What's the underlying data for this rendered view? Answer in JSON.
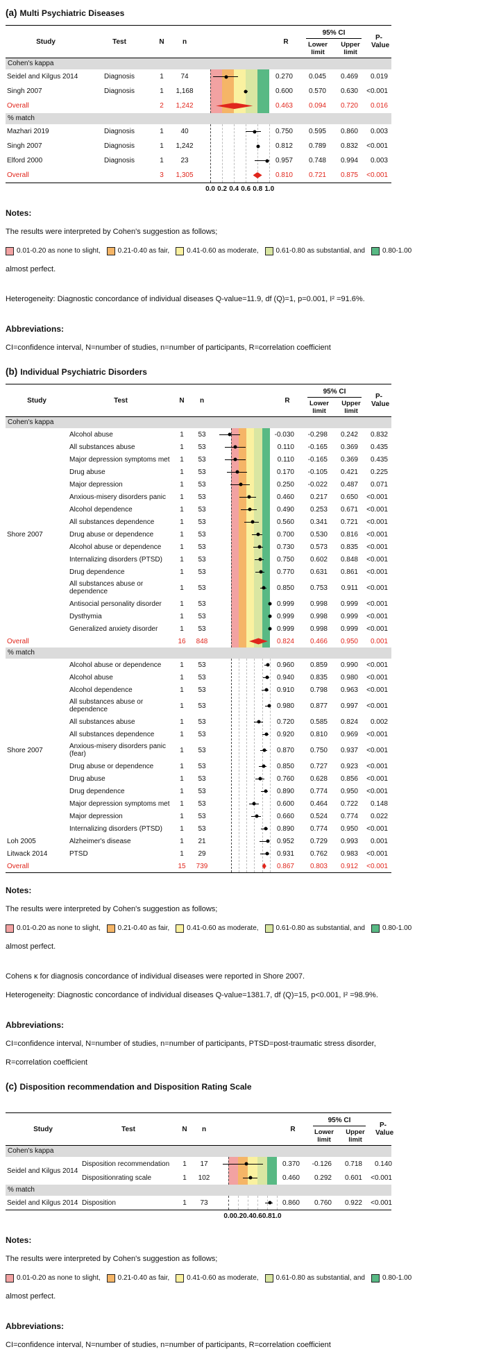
{
  "colors": {
    "band_colors": [
      "#F2A2A2",
      "#F5B567",
      "#FAF1A0",
      "#D9E6A2",
      "#58B984"
    ],
    "overall_red": "#E0261C",
    "section_bg": "#DBDBDB"
  },
  "band_ranges": [
    [
      0,
      0.2
    ],
    [
      0.2,
      0.4
    ],
    [
      0.4,
      0.6
    ],
    [
      0.6,
      0.8
    ],
    [
      0.8,
      1.0
    ]
  ],
  "labels": {
    "notes_heading": "Notes:",
    "abbreviations_heading": "Abbreviations:"
  },
  "legend": {
    "intro": "The results were interpreted by Cohen's suggestion as follows;",
    "items": [
      {
        "color_index": 0,
        "label": "0.01-0.20 as none to slight,"
      },
      {
        "color_index": 1,
        "label": "0.21-0.40 as fair,"
      },
      {
        "color_index": 2,
        "label": "0.41-0.60 as moderate,"
      },
      {
        "color_index": 3,
        "label": "0.61-0.80 as substantial, and"
      },
      {
        "color_index": 4,
        "label": "0.80-1.00"
      }
    ],
    "tail": "almost perfect."
  },
  "table_headers": {
    "study": "Study",
    "test": "Test",
    "n_studies": "N",
    "n_participants": "n",
    "r": "R",
    "ci": "95% CI",
    "lower": "Lower limit",
    "upper": "Upper limit",
    "p": "P-Value"
  },
  "chart_data": [
    {
      "type": "forest",
      "id": "a",
      "label": "(a)",
      "title": "Multi Psychiatric Diseases",
      "domain": [
        -0.2,
        1.02
      ],
      "axis": {
        "ticks": [
          0,
          0.2,
          0.4,
          0.6,
          0.8,
          1.0
        ],
        "labels": [
          "0.0",
          "0.2",
          "0.4",
          "0.6",
          "0.8",
          "1.0"
        ]
      },
      "sections": [
        {
          "name": "Cohen's kappa",
          "colored": true,
          "rows": [
            {
              "study": "Seidel and Kilgus 2014",
              "test": "Diagnosis",
              "N": "1",
              "n": "74",
              "R": "0.270",
              "lower": "0.045",
              "upper": "0.469",
              "p": "0.019",
              "rv": 0.27,
              "lo": 0.045,
              "hi": 0.469
            },
            {
              "study": "Singh 2007",
              "test": "Diagnosis",
              "N": "1",
              "n": "1,168",
              "R": "0.600",
              "lower": "0.570",
              "upper": "0.630",
              "p": "<0.001",
              "rv": 0.6,
              "lo": 0.57,
              "hi": 0.63
            },
            {
              "study": "Overall",
              "test": "",
              "N": "2",
              "n": "1,242",
              "R": "0.463",
              "lower": "0.094",
              "upper": "0.720",
              "p": "0.016",
              "rv": 0.463,
              "lo": 0.094,
              "hi": 0.72,
              "overall": true
            }
          ]
        },
        {
          "name": "% match",
          "colored": false,
          "rows": [
            {
              "study": "Mazhari 2019",
              "test": "Diagnosis",
              "N": "1",
              "n": "40",
              "R": "0.750",
              "lower": "0.595",
              "upper": "0.860",
              "p": "0.003",
              "rv": 0.75,
              "lo": 0.595,
              "hi": 0.86
            },
            {
              "study": "Singh 2007",
              "test": "Diagnosis",
              "N": "1",
              "n": "1,242",
              "R": "0.812",
              "lower": "0.789",
              "upper": "0.832",
              "p": "<0.001",
              "rv": 0.812,
              "lo": 0.789,
              "hi": 0.832
            },
            {
              "study": "Elford 2000",
              "test": "Diagnosis",
              "N": "1",
              "n": "23",
              "R": "0.957",
              "lower": "0.748",
              "upper": "0.994",
              "p": "0.003",
              "rv": 0.957,
              "lo": 0.748,
              "hi": 0.994
            },
            {
              "study": "Overall",
              "test": "",
              "N": "3",
              "n": "1,305",
              "R": "0.810",
              "lower": "0.721",
              "upper": "0.875",
              "p": "<0.001",
              "rv": 0.81,
              "lo": 0.721,
              "hi": 0.875,
              "overall": true
            }
          ]
        }
      ],
      "notes": {
        "extra": [],
        "heterogeneity": "Heterogeneity: Diagnostic concordance of individual diseases Q-value=11.9, df (Q)=1, p=0.001, I² =91.6%.",
        "abbr_lines": [
          "CI=confidence interval, N=number of studies, n=number of participants, R=correlation coefficient"
        ]
      }
    },
    {
      "type": "forest",
      "id": "b",
      "label": "(b)",
      "title": "Individual Psychiatric Disorders",
      "domain": [
        -0.45,
        1.06
      ],
      "axis": null,
      "sections": [
        {
          "name": "Cohen's kappa",
          "colored": true,
          "rows": [
            {
              "study": "",
              "test": "Alcohol abuse",
              "N": "1",
              "n": "53",
              "R": "-0.030",
              "lower": "-0.298",
              "upper": "0.242",
              "p": "0.832",
              "rv": -0.03,
              "lo": -0.298,
              "hi": 0.242
            },
            {
              "study": "",
              "test": "All substances abuse",
              "N": "1",
              "n": "53",
              "R": "0.110",
              "lower": "-0.165",
              "upper": "0.369",
              "p": "0.435",
              "rv": 0.11,
              "lo": -0.165,
              "hi": 0.369
            },
            {
              "study": "",
              "test": "Major depression symptoms met",
              "N": "1",
              "n": "53",
              "R": "0.110",
              "lower": "-0.165",
              "upper": "0.369",
              "p": "0.435",
              "rv": 0.11,
              "lo": -0.165,
              "hi": 0.369
            },
            {
              "study": "",
              "test": "Drug abuse",
              "N": "1",
              "n": "53",
              "R": "0.170",
              "lower": "-0.105",
              "upper": "0.421",
              "p": "0.225",
              "rv": 0.17,
              "lo": -0.105,
              "hi": 0.421
            },
            {
              "study": "",
              "test": "Major depression",
              "N": "1",
              "n": "53",
              "R": "0.250",
              "lower": "-0.022",
              "upper": "0.487",
              "p": "0.071",
              "rv": 0.25,
              "lo": -0.022,
              "hi": 0.487
            },
            {
              "study": "",
              "test": "Anxious-misery disorders panic",
              "N": "1",
              "n": "53",
              "R": "0.460",
              "lower": "0.217",
              "upper": "0.650",
              "p": "<0.001",
              "rv": 0.46,
              "lo": 0.217,
              "hi": 0.65
            },
            {
              "study": "",
              "test": "Alcohol dependence",
              "N": "1",
              "n": "53",
              "R": "0.490",
              "lower": "0.253",
              "upper": "0.671",
              "p": "<0.001",
              "rv": 0.49,
              "lo": 0.253,
              "hi": 0.671
            },
            {
              "study": "",
              "test": "All substances dependence",
              "N": "1",
              "n": "53",
              "R": "0.560",
              "lower": "0.341",
              "upper": "0.721",
              "p": "<0.001",
              "rv": 0.56,
              "lo": 0.341,
              "hi": 0.721
            },
            {
              "study": "Shore 2007",
              "test": "Drug abuse or dependence",
              "N": "1",
              "n": "53",
              "R": "0.700",
              "lower": "0.530",
              "upper": "0.816",
              "p": "<0.001",
              "rv": 0.7,
              "lo": 0.53,
              "hi": 0.816
            },
            {
              "study": "",
              "test": "Alcohol abuse or dependence",
              "N": "1",
              "n": "53",
              "R": "0.730",
              "lower": "0.573",
              "upper": "0.835",
              "p": "<0.001",
              "rv": 0.73,
              "lo": 0.573,
              "hi": 0.835
            },
            {
              "study": "",
              "test": "Internalizing disorders (PTSD)",
              "N": "1",
              "n": "53",
              "R": "0.750",
              "lower": "0.602",
              "upper": "0.848",
              "p": "<0.001",
              "rv": 0.75,
              "lo": 0.602,
              "hi": 0.848
            },
            {
              "study": "",
              "test": "Drug dependence",
              "N": "1",
              "n": "53",
              "R": "0.770",
              "lower": "0.631",
              "upper": "0.861",
              "p": "<0.001",
              "rv": 0.77,
              "lo": 0.631,
              "hi": 0.861
            },
            {
              "study": "",
              "test": "All substances abuse or dependence",
              "N": "1",
              "n": "53",
              "R": "0.850",
              "lower": "0.753",
              "upper": "0.911",
              "p": "<0.001",
              "rv": 0.85,
              "lo": 0.753,
              "hi": 0.911,
              "wrap": true
            },
            {
              "study": "",
              "test": "Antisocial personality disorder",
              "N": "1",
              "n": "53",
              "R": "0.999",
              "lower": "0.998",
              "upper": "0.999",
              "p": "<0.001",
              "rv": 0.999,
              "lo": 0.998,
              "hi": 0.999
            },
            {
              "study": "",
              "test": "Dysthymia",
              "N": "1",
              "n": "53",
              "R": "0.999",
              "lower": "0.998",
              "upper": "0.999",
              "p": "<0.001",
              "rv": 0.999,
              "lo": 0.998,
              "hi": 0.999
            },
            {
              "study": "",
              "test": "Generalized anxiety disorder",
              "N": "1",
              "n": "53",
              "R": "0.999",
              "lower": "0.998",
              "upper": "0.999",
              "p": "<0.001",
              "rv": 0.999,
              "lo": 0.998,
              "hi": 0.999
            },
            {
              "study": "Overall",
              "test": "",
              "N": "16",
              "n": "848",
              "R": "0.824",
              "lower": "0.466",
              "upper": "0.950",
              "p": "0.001",
              "rv": 0.824,
              "lo": 0.466,
              "hi": 0.95,
              "overall": true
            }
          ]
        },
        {
          "name": "% match",
          "colored": false,
          "rows": [
            {
              "study": "",
              "test": "Alcohol abuse or dependence",
              "N": "1",
              "n": "53",
              "R": "0.960",
              "lower": "0.859",
              "upper": "0.990",
              "p": "<0.001",
              "rv": 0.96,
              "lo": 0.859,
              "hi": 0.99
            },
            {
              "study": "",
              "test": "Alcohol abuse",
              "N": "1",
              "n": "53",
              "R": "0.940",
              "lower": "0.835",
              "upper": "0.980",
              "p": "<0.001",
              "rv": 0.94,
              "lo": 0.835,
              "hi": 0.98
            },
            {
              "study": "",
              "test": "Alcohol dependence",
              "N": "1",
              "n": "53",
              "R": "0.910",
              "lower": "0.798",
              "upper": "0.963",
              "p": "<0.001",
              "rv": 0.91,
              "lo": 0.798,
              "hi": 0.963
            },
            {
              "study": "",
              "test": "All substances abuse or dependence",
              "N": "1",
              "n": "53",
              "R": "0.980",
              "lower": "0.877",
              "upper": "0.997",
              "p": "<0.001",
              "rv": 0.98,
              "lo": 0.877,
              "hi": 0.997,
              "wrap": true
            },
            {
              "study": "",
              "test": "All substances abuse",
              "N": "1",
              "n": "53",
              "R": "0.720",
              "lower": "0.585",
              "upper": "0.824",
              "p": "0.002",
              "rv": 0.72,
              "lo": 0.585,
              "hi": 0.824
            },
            {
              "study": "",
              "test": "All substances dependence",
              "N": "1",
              "n": "53",
              "R": "0.920",
              "lower": "0.810",
              "upper": "0.969",
              "p": "<0.001",
              "rv": 0.92,
              "lo": 0.81,
              "hi": 0.969
            },
            {
              "study": "Shore 2007",
              "test": "Anxious-misery disorders panic (fear)",
              "N": "1",
              "n": "53",
              "R": "0.870",
              "lower": "0.750",
              "upper": "0.937",
              "p": "<0.001",
              "rv": 0.87,
              "lo": 0.75,
              "hi": 0.937,
              "wrap": true
            },
            {
              "study": "",
              "test": "Drug abuse or dependence",
              "N": "1",
              "n": "53",
              "R": "0.850",
              "lower": "0.727",
              "upper": "0.923",
              "p": "<0.001",
              "rv": 0.85,
              "lo": 0.727,
              "hi": 0.923
            },
            {
              "study": "",
              "test": "Drug abuse",
              "N": "1",
              "n": "53",
              "R": "0.760",
              "lower": "0.628",
              "upper": "0.856",
              "p": "<0.001",
              "rv": 0.76,
              "lo": 0.628,
              "hi": 0.856
            },
            {
              "study": "",
              "test": "Drug dependence",
              "N": "1",
              "n": "53",
              "R": "0.890",
              "lower": "0.774",
              "upper": "0.950",
              "p": "<0.001",
              "rv": 0.89,
              "lo": 0.774,
              "hi": 0.95
            },
            {
              "study": "",
              "test": "Major depression symptoms met",
              "N": "1",
              "n": "53",
              "R": "0.600",
              "lower": "0.464",
              "upper": "0.722",
              "p": "0.148",
              "rv": 0.6,
              "lo": 0.464,
              "hi": 0.722
            },
            {
              "study": "",
              "test": "Major depression",
              "N": "1",
              "n": "53",
              "R": "0.660",
              "lower": "0.524",
              "upper": "0.774",
              "p": "0.022",
              "rv": 0.66,
              "lo": 0.524,
              "hi": 0.774
            },
            {
              "study": "",
              "test": "Internalizing disorders (PTSD)",
              "N": "1",
              "n": "53",
              "R": "0.890",
              "lower": "0.774",
              "upper": "0.950",
              "p": "<0.001",
              "rv": 0.89,
              "lo": 0.774,
              "hi": 0.95
            },
            {
              "study": "Loh 2005",
              "test": "Alzheimer's disease",
              "N": "1",
              "n": "21",
              "R": "0.952",
              "lower": "0.729",
              "upper": "0.993",
              "p": "0.001",
              "rv": 0.952,
              "lo": 0.729,
              "hi": 0.993
            },
            {
              "study": "Litwack 2014",
              "test": "PTSD",
              "N": "1",
              "n": "29",
              "R": "0.931",
              "lower": "0.762",
              "upper": "0.983",
              "p": "<0.001",
              "rv": 0.931,
              "lo": 0.762,
              "hi": 0.983
            },
            {
              "study": "Overall",
              "test": "",
              "N": "15",
              "n": "739",
              "R": "0.867",
              "lower": "0.803",
              "upper": "0.912",
              "p": "<0.001",
              "rv": 0.867,
              "lo": 0.803,
              "hi": 0.912,
              "overall": true
            }
          ]
        }
      ],
      "notes": {
        "extra": [
          "Cohens κ for diagnosis concordance of individual diseases were reported in Shore 2007."
        ],
        "heterogeneity": "Heterogeneity: Diagnostic concordance of individual diseases Q-value=1381.7, df (Q)=15, p<0.001, I² =98.9%.",
        "abbr_lines": [
          "CI=confidence interval, N=number of studies, n=number of participants, PTSD=post-traumatic stress disorder,",
          "R=correlation coefficient"
        ]
      }
    },
    {
      "type": "forest",
      "id": "c",
      "label": "(c)",
      "title": "Disposition recommendation and Disposition Rating Scale",
      "domain": [
        -0.28,
        1.02
      ],
      "axis": {
        "ticks": [
          0,
          0.2,
          0.4,
          0.6,
          0.8,
          1.0
        ],
        "labels": [
          "0.0",
          "0.2",
          "0.4",
          "0.6",
          "0.8",
          "1.0"
        ]
      },
      "sections": [
        {
          "name": "Cohen's kappa",
          "colored": true,
          "rows": [
            {
              "study": "Seidel and Kilgus 2014",
              "study_shift": true,
              "test": "Disposition recommendation",
              "N": "1",
              "n": "17",
              "R": "0.370",
              "lower": "-0.126",
              "upper": "0.718",
              "p": "0.140",
              "rv": 0.37,
              "lo": -0.126,
              "hi": 0.718
            },
            {
              "study": "",
              "test": "Dispositionrating scale",
              "N": "1",
              "n": "102",
              "R": "0.460",
              "lower": "0.292",
              "upper": "0.601",
              "p": "<0.001",
              "rv": 0.46,
              "lo": 0.292,
              "hi": 0.601
            }
          ]
        },
        {
          "name": "% match",
          "colored": false,
          "rows": [
            {
              "study": "Seidel and Kilgus 2014",
              "test": "Disposition",
              "N": "1",
              "n": "73",
              "R": "0.860",
              "lower": "0.760",
              "upper": "0.922",
              "p": "<0.001",
              "rv": 0.86,
              "lo": 0.76,
              "hi": 0.922
            }
          ]
        }
      ],
      "notes": {
        "extra": [],
        "heterogeneity": null,
        "abbr_lines": [
          "CI=confidence interval, N=number of studies, n=number of participants, R=correlation coefficient"
        ]
      }
    }
  ]
}
